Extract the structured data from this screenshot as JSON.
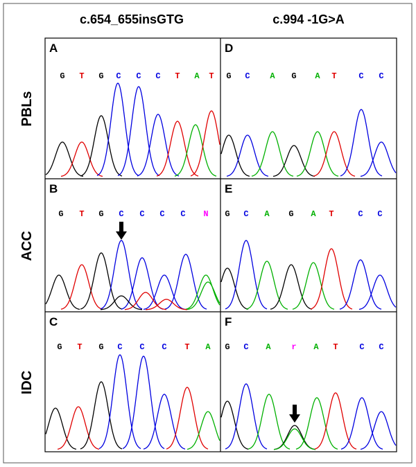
{
  "header": {
    "columns": [
      "c.654_655insGTG",
      "c.994 -1G>A"
    ]
  },
  "rows": [
    "PBLs",
    "ACC",
    "IDC"
  ],
  "panels": [
    {
      "label": "A",
      "bases": [
        "G",
        "T",
        "G",
        "C",
        "C",
        "C",
        "T",
        "A",
        "T"
      ]
    },
    {
      "label": "D",
      "bases": [
        "G",
        "C",
        "A",
        "G",
        "A",
        "T",
        "C",
        "C"
      ]
    },
    {
      "label": "B",
      "bases": [
        "G",
        "T",
        "G",
        "C",
        "C",
        "C",
        "C",
        "N"
      ]
    },
    {
      "label": "E",
      "bases": [
        "G",
        "C",
        "A",
        "G",
        "A",
        "T",
        "C",
        "C"
      ]
    },
    {
      "label": "C",
      "bases": [
        "G",
        "T",
        "G",
        "C",
        "C",
        "C",
        "T",
        "A"
      ]
    },
    {
      "label": "F",
      "bases": [
        "G",
        "C",
        "A",
        "r",
        "A",
        "T",
        "C",
        "C"
      ]
    }
  ]
}
